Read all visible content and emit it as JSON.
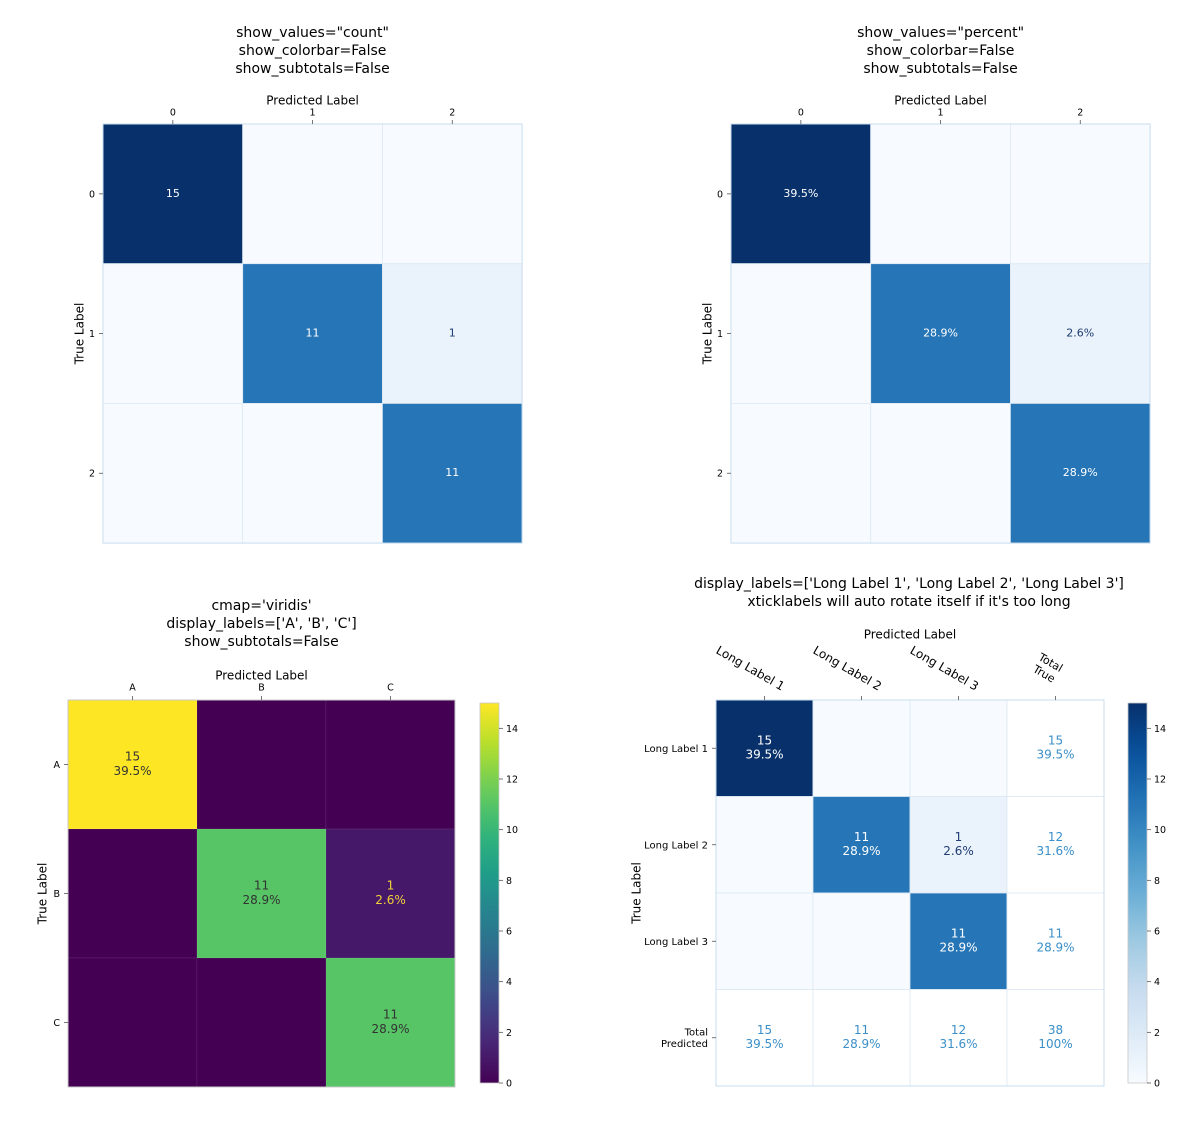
{
  "chart_data": [
    {
      "type": "heatmap",
      "title": [
        "show_values=\"count\"",
        "show_colorbar=False",
        "show_subtotals=False"
      ],
      "xlabel": "Predicted Label",
      "ylabel": "True Label",
      "x_tick_labels": [
        "0",
        "1",
        "2"
      ],
      "y_tick_labels": [
        "0",
        "1",
        "2"
      ],
      "matrix": [
        [
          15,
          0,
          0
        ],
        [
          0,
          11,
          1
        ],
        [
          0,
          0,
          11
        ]
      ],
      "cell_labels": [
        [
          "15",
          "",
          ""
        ],
        [
          "",
          "11",
          "1"
        ],
        [
          "",
          "",
          "11"
        ]
      ],
      "colormap": "Blues",
      "vmin": 0,
      "vmax": 15,
      "colorbar": false
    },
    {
      "type": "heatmap",
      "title": [
        "show_values=\"percent\"",
        "show_colorbar=False",
        "show_subtotals=False"
      ],
      "xlabel": "Predicted Label",
      "ylabel": "True Label",
      "x_tick_labels": [
        "0",
        "1",
        "2"
      ],
      "y_tick_labels": [
        "0",
        "1",
        "2"
      ],
      "matrix": [
        [
          15,
          0,
          0
        ],
        [
          0,
          11,
          1
        ],
        [
          0,
          0,
          11
        ]
      ],
      "cell_labels": [
        [
          "39.5%",
          "",
          ""
        ],
        [
          "",
          "28.9%",
          "2.6%"
        ],
        [
          "",
          "",
          "28.9%"
        ]
      ],
      "colormap": "Blues",
      "vmin": 0,
      "vmax": 15,
      "colorbar": false
    },
    {
      "type": "heatmap",
      "title": [
        "cmap='viridis'",
        "display_labels=['A', 'B', 'C']",
        "show_subtotals=False"
      ],
      "xlabel": "Predicted Label",
      "ylabel": "True Label",
      "x_tick_labels": [
        "A",
        "B",
        "C"
      ],
      "y_tick_labels": [
        "A",
        "B",
        "C"
      ],
      "matrix": [
        [
          15,
          0,
          0
        ],
        [
          0,
          11,
          1
        ],
        [
          0,
          0,
          11
        ]
      ],
      "cell_labels": [
        [
          "15\n39.5%",
          "",
          ""
        ],
        [
          "",
          "11\n28.9%",
          "1\n2.6%"
        ],
        [
          "",
          "",
          "11\n28.9%"
        ]
      ],
      "colormap": "viridis",
      "vmin": 0,
      "vmax": 15,
      "colorbar": true,
      "colorbar_ticks": [
        "0",
        "2",
        "4",
        "6",
        "8",
        "10",
        "12",
        "14"
      ]
    },
    {
      "type": "heatmap",
      "title": [
        "display_labels=['Long Label 1', 'Long Label 2', 'Long Label 3']",
        "xticklabels will auto rotate itself if it's too long"
      ],
      "xlabel": "Predicted Label",
      "ylabel": "True Label",
      "x_tick_labels": [
        "Long Label 1",
        "Long Label 2",
        "Long Label 3",
        "Total\nTrue"
      ],
      "y_tick_labels": [
        "Long Label 1",
        "Long Label 2",
        "Long Label 3",
        "Total\nPredicted"
      ],
      "matrix": [
        [
          15,
          0,
          0
        ],
        [
          0,
          11,
          1
        ],
        [
          0,
          0,
          11
        ]
      ],
      "cell_labels": [
        [
          "15\n39.5%",
          "",
          ""
        ],
        [
          "",
          "11\n28.9%",
          "1\n2.6%"
        ],
        [
          "",
          "",
          "11\n28.9%"
        ]
      ],
      "row_totals": [
        "15\n39.5%",
        "12\n31.6%",
        "11\n28.9%"
      ],
      "col_totals": [
        "15\n39.5%",
        "11\n28.9%",
        "12\n31.6%"
      ],
      "grand_total": "38\n100%",
      "colormap": "Blues",
      "vmin": 0,
      "vmax": 15,
      "colorbar": true,
      "colorbar_ticks": [
        "0",
        "2",
        "4",
        "6",
        "8",
        "10",
        "12",
        "14"
      ]
    }
  ]
}
